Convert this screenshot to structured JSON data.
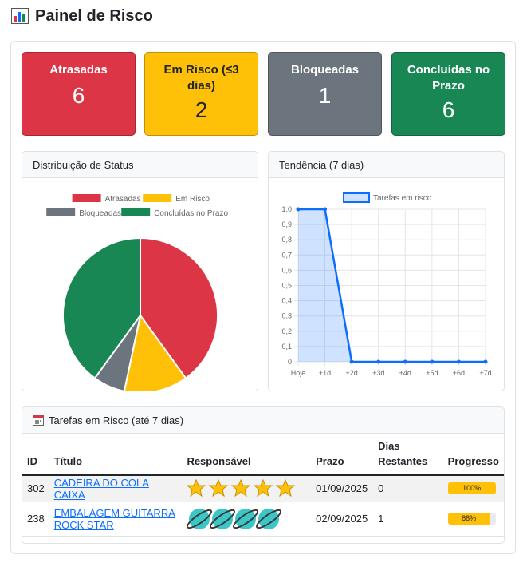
{
  "page": {
    "title": "Painel de Risco",
    "icon": "bar-chart-icon"
  },
  "stats": [
    {
      "label": "Atrasadas",
      "value": "6",
      "color": "#dc3545"
    },
    {
      "label": "Em Risco (≤3 dias)",
      "value": "2",
      "color": "#ffc107"
    },
    {
      "label": "Bloqueadas",
      "value": "1",
      "color": "#6c757d"
    },
    {
      "label": "Concluídas no Prazo",
      "value": "6",
      "color": "#198754"
    }
  ],
  "status_card": {
    "title": "Distribuição de Status"
  },
  "trend_card": {
    "title": "Tendência (7 dias)"
  },
  "chart_data": [
    {
      "type": "pie",
      "title": "",
      "legend_position": "top",
      "labels": [
        "Atrasadas",
        "Em Risco",
        "Bloqueadas",
        "Concluídas no Prazo"
      ],
      "values": [
        6,
        2,
        1,
        6
      ],
      "colors": [
        "#dc3545",
        "#ffc107",
        "#6c757d",
        "#198754"
      ]
    },
    {
      "type": "area",
      "title": "",
      "legend_position": "top",
      "x": [
        "Hoje",
        "+1d",
        "+2d",
        "+3d",
        "+4d",
        "+5d",
        "+6d",
        "+7d"
      ],
      "series": [
        {
          "name": "Tarefas em risco",
          "values": [
            1,
            1,
            0,
            0,
            0,
            0,
            0,
            0
          ],
          "color": "#0d6efd"
        }
      ],
      "ylim": [
        0,
        1
      ],
      "yticks": [
        "0",
        "0,1",
        "0,2",
        "0,3",
        "0,4",
        "0,5",
        "0,6",
        "0,7",
        "0,8",
        "0,9",
        "1,0"
      ],
      "grid": true
    }
  ],
  "tasks_card": {
    "title": "Tarefas em Risco (até 7 dias)",
    "icon": "calendar-icon",
    "columns": [
      "ID",
      "Título",
      "Responsável",
      "Prazo",
      "Dias Restantes",
      "Progresso"
    ],
    "rows": [
      {
        "id": "302",
        "title": "CADEIRA DO COLA CAIXA",
        "assignee_icon": "star-avatar-icon",
        "due": "01/09/2025",
        "days_left": "0",
        "progress": 100,
        "progress_label": "100%"
      },
      {
        "id": "238",
        "title": "EMBALAGEM GUITARRA ROCK STAR",
        "assignee_icon": "planet-avatar-icon",
        "due": "02/09/2025",
        "days_left": "1",
        "progress": 88,
        "progress_label": "88%"
      }
    ]
  }
}
